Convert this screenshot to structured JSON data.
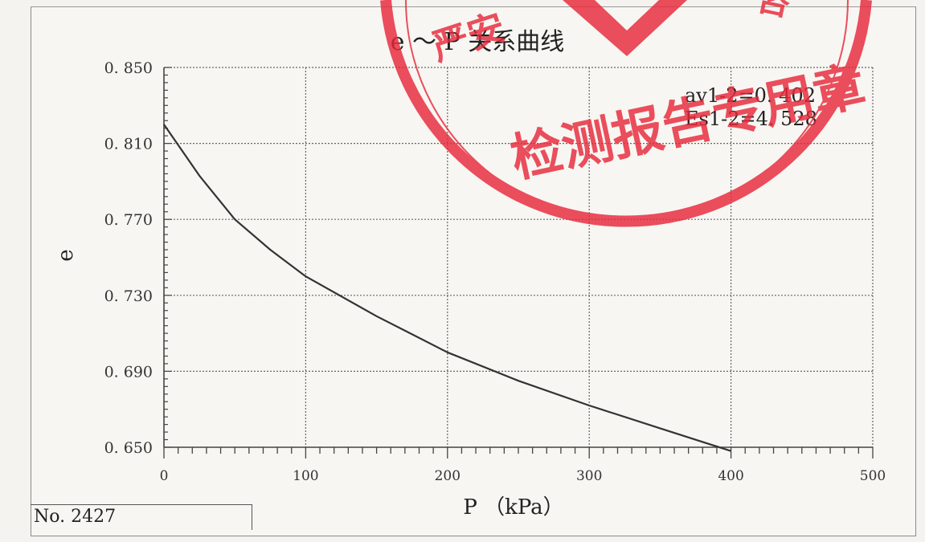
{
  "chart_data": {
    "type": "line",
    "title": "e ～ P 关系曲线",
    "xlabel": "P （kPa）",
    "ylabel": "e",
    "xlim": [
      0,
      500
    ],
    "ylim": [
      0.65,
      0.85
    ],
    "xticks": [
      "0",
      "100",
      "200",
      "300",
      "400",
      "500"
    ],
    "yticks": [
      "0. 650",
      "0. 690",
      "0. 730",
      "0. 770",
      "0. 810",
      "0. 850"
    ],
    "grid": true,
    "series": [
      {
        "x": [
          0,
          25,
          50,
          75,
          100,
          150,
          200,
          250,
          300,
          350,
          400
        ],
        "y": [
          0.82,
          0.793,
          0.77,
          0.754,
          0.74,
          0.719,
          0.7,
          0.685,
          0.672,
          0.66,
          0.648
        ]
      }
    ],
    "annotations": [
      "av1-2=0. 402",
      "Es1-2=4. 528"
    ],
    "line_color": "#333333"
  },
  "sample_no": "No. 2427",
  "stamp": {
    "text": "检测报告专用章",
    "partial_text": "严安",
    "color": "#e8283a"
  }
}
